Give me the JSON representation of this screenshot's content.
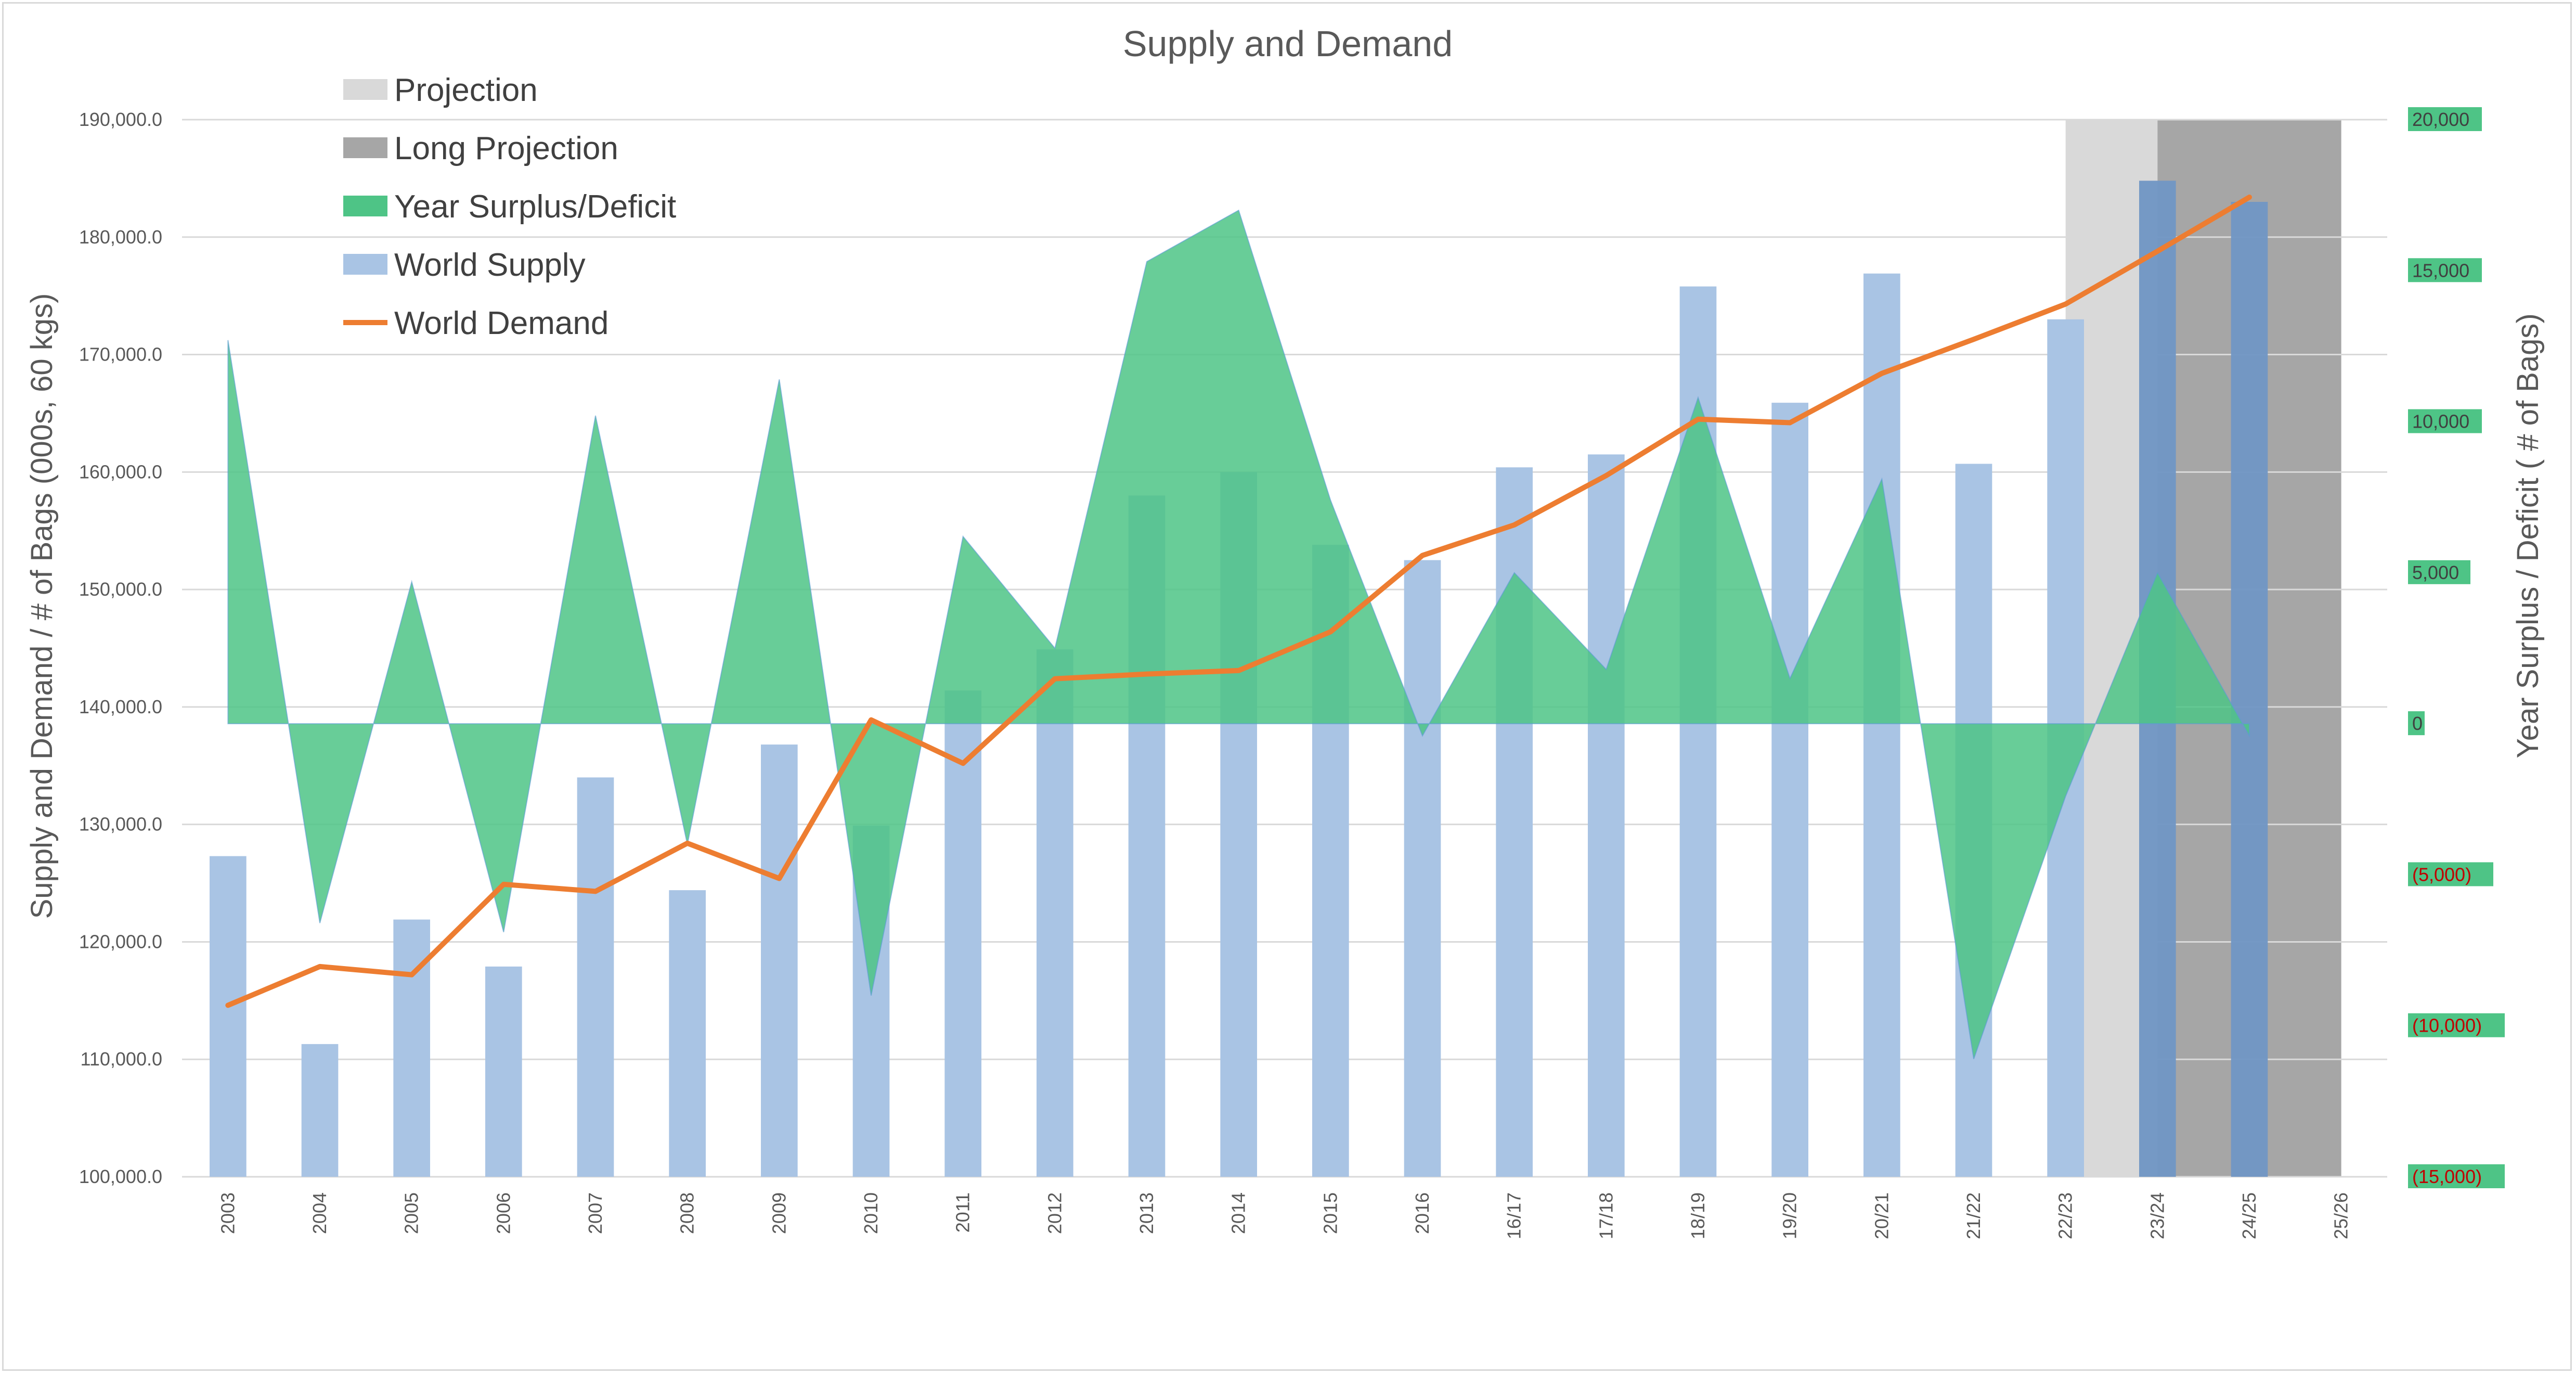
{
  "chart_data": {
    "type": "bar",
    "title": "Supply and Demand",
    "ylabel": "Supply and Demand / # of Bags (000s, 60 kgs)",
    "y2label": "Year Surplus / Deficit ( # of Bags)",
    "ylim": [
      100000,
      190000
    ],
    "y2lim": [
      -15000,
      20000
    ],
    "yticks": [
      "100,000.0",
      "110,000.0",
      "120,000.0",
      "130,000.0",
      "140,000.0",
      "150,000.0",
      "160,000.0",
      "170,000.0",
      "180,000.0",
      "190,000.0"
    ],
    "y2ticks": [
      {
        "label": "(15,000)",
        "negative": true
      },
      {
        "label": "(10,000)",
        "negative": true
      },
      {
        "label": "(5,000)",
        "negative": true
      },
      {
        "label": "0",
        "negative": false
      },
      {
        "label": "5,000",
        "negative": false
      },
      {
        "label": "10,000",
        "negative": false
      },
      {
        "label": "15,000",
        "negative": false
      },
      {
        "label": "20,000",
        "negative": false
      }
    ],
    "categories": [
      "2003",
      "2004",
      "2005",
      "2006",
      "2007",
      "2008",
      "2009",
      "2010",
      "2011",
      "2012",
      "2013",
      "2014",
      "2015",
      "2016",
      "16/17",
      "17/18",
      "18/19",
      "19/20",
      "20/21",
      "21/22",
      "22/23",
      "23/24",
      "24/25",
      "25/26"
    ],
    "grid": true,
    "legend_position": "top-left",
    "series": [
      {
        "name": "World Supply",
        "type": "bar",
        "color": "#a9c4e4",
        "values": [
          127300,
          111300,
          121900,
          117900,
          134000,
          124400,
          136800,
          129900,
          141400,
          144900,
          158000,
          160000,
          153800,
          152500,
          160400,
          161500,
          175800,
          165900,
          176900,
          160700,
          173000,
          184800,
          183000,
          null
        ]
      },
      {
        "name": "World Demand",
        "type": "line",
        "color": "#ed7d31",
        "values": [
          114600,
          117900,
          117200,
          124900,
          124300,
          128400,
          125400,
          138900,
          135200,
          142400,
          142800,
          143100,
          146400,
          152900,
          155500,
          159700,
          164500,
          164200,
          168400,
          171300,
          174300,
          178800,
          183400,
          null
        ]
      },
      {
        "name": "Year Surplus/Deficit",
        "type": "area",
        "axis": "right",
        "color": "#4ec486",
        "values": [
          12700,
          -6600,
          4700,
          -6900,
          10200,
          -4000,
          11400,
          -9000,
          6200,
          2500,
          15300,
          17000,
          7400,
          -400,
          5000,
          1800,
          10800,
          1500,
          8100,
          -11100,
          -2400,
          5000,
          -400,
          null
        ]
      },
      {
        "name": "Projection",
        "type": "band",
        "color": "#d9d9d9",
        "range": [
          "22/23",
          "23/24"
        ]
      },
      {
        "name": "Long Projection",
        "type": "band",
        "color": "#a6a6a6",
        "range": [
          "23/24",
          "25/26"
        ]
      }
    ],
    "colors": {
      "positive_label_bg": "#4ec486",
      "negative_label_text": "#c00000",
      "grid": "#d9d9d9",
      "text": "#595959"
    }
  }
}
